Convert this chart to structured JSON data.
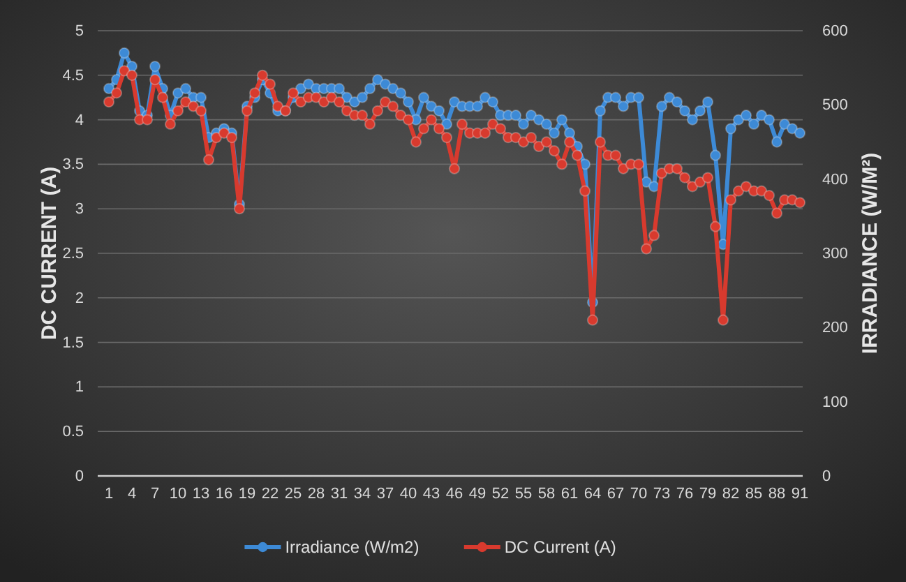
{
  "chart_data": {
    "type": "line",
    "ylabel": "DC CURRENT (A)",
    "y2label": "IRRADIANCE (W/M²)",
    "categories": [
      "1",
      null,
      null,
      "4",
      null,
      null,
      "7",
      null,
      null,
      "10",
      null,
      null,
      "13",
      null,
      null,
      "16",
      null,
      null,
      "19",
      null,
      null,
      "22",
      null,
      null,
      "25",
      null,
      null,
      "28",
      null,
      null,
      "31",
      null,
      null,
      "34",
      null,
      null,
      "37",
      null,
      null,
      "40",
      null,
      null,
      "43",
      null,
      null,
      "46",
      null,
      null,
      "49",
      null,
      null,
      "52",
      null,
      null,
      "55",
      null,
      null,
      "58",
      null,
      null,
      "61",
      null,
      null,
      "64",
      null,
      null,
      "67",
      null,
      null,
      "70",
      null,
      null,
      "73",
      null,
      null,
      "76",
      null,
      null,
      "79",
      null,
      null,
      "82",
      null,
      null,
      "85",
      null,
      null,
      "88",
      null,
      null,
      "91"
    ],
    "series": [
      {
        "name": "Irradiance (W/m2)",
        "color": "#3d8ad6",
        "axis": "y2",
        "values": [
          522,
          534,
          570,
          552,
          492,
          486,
          552,
          522,
          486,
          516,
          522,
          510,
          510,
          456,
          462,
          468,
          462,
          366,
          498,
          510,
          534,
          516,
          492,
          492,
          510,
          522,
          528,
          522,
          522,
          522,
          522,
          510,
          504,
          510,
          522,
          534,
          528,
          522,
          516,
          504,
          480,
          510,
          498,
          492,
          474,
          504,
          498,
          498,
          498,
          510,
          504,
          486,
          486,
          486,
          474,
          486,
          480,
          474,
          462,
          480,
          462,
          444,
          420,
          234,
          492,
          510,
          510,
          498,
          510,
          510,
          396,
          390,
          498,
          510,
          504,
          492,
          480,
          492,
          504,
          432,
          312,
          468,
          480,
          486,
          474,
          486,
          480,
          450,
          474,
          468,
          462
        ]
      },
      {
        "name": "DC Current (A)",
        "color": "#d83a2e",
        "axis": "y",
        "values": [
          4.2,
          4.3,
          4.55,
          4.5,
          4.0,
          4.0,
          4.45,
          4.25,
          3.95,
          4.1,
          4.2,
          4.15,
          4.1,
          3.55,
          3.8,
          3.85,
          3.8,
          3.0,
          4.1,
          4.3,
          4.5,
          4.4,
          4.15,
          4.1,
          4.3,
          4.2,
          4.25,
          4.25,
          4.2,
          4.25,
          4.2,
          4.1,
          4.05,
          4.05,
          3.95,
          4.1,
          4.2,
          4.15,
          4.05,
          4.0,
          3.75,
          3.9,
          4.0,
          3.9,
          3.8,
          3.45,
          3.95,
          3.85,
          3.85,
          3.85,
          3.95,
          3.9,
          3.8,
          3.8,
          3.75,
          3.8,
          3.7,
          3.75,
          3.65,
          3.5,
          3.75,
          3.6,
          3.2,
          1.75,
          3.75,
          3.6,
          3.6,
          3.45,
          3.5,
          3.5,
          2.55,
          2.7,
          3.4,
          3.45,
          3.45,
          3.35,
          3.25,
          3.3,
          3.35,
          2.8,
          1.75,
          3.1,
          3.2,
          3.25,
          3.2,
          3.2,
          3.15,
          2.95,
          3.1,
          3.1,
          3.07
        ]
      }
    ],
    "ylim": [
      0,
      5
    ],
    "yticks": [
      0,
      0.5,
      1,
      1.5,
      2,
      2.5,
      3,
      3.5,
      4,
      4.5,
      5
    ],
    "y2lim": [
      0,
      600
    ],
    "y2ticks": [
      0,
      100,
      200,
      300,
      400,
      500,
      600
    ],
    "grid": "y",
    "legend": "bottom",
    "marker": "circle",
    "line_style": "solid"
  }
}
